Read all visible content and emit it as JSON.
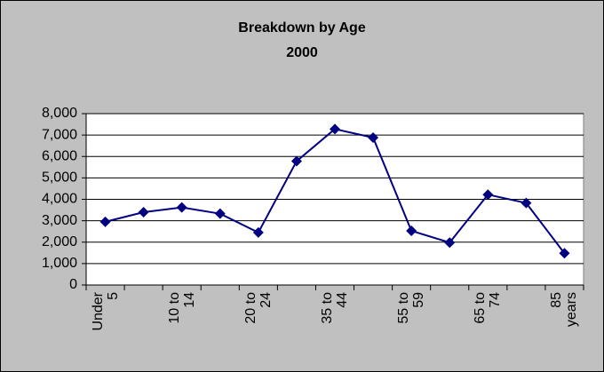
{
  "chart_data": {
    "type": "line",
    "title": "Breakdown by Age",
    "subtitle": "2000",
    "categories": [
      "Under 5",
      null,
      "10 to 14",
      null,
      "20 to 24",
      null,
      "35 to 44",
      null,
      "55 to 59",
      null,
      "65 to 74",
      null,
      "85 years"
    ],
    "series": [
      {
        "name": "2000",
        "color": "#000080",
        "values": [
          2950,
          3400,
          3620,
          3330,
          2450,
          5780,
          7280,
          6880,
          2530,
          1980,
          4220,
          3830,
          1480
        ]
      }
    ],
    "ylim": [
      0,
      8000
    ],
    "yticks": [
      0,
      {
        "value": 1000,
        "label": "1,000"
      },
      {
        "value": 2000,
        "label": "2,000"
      },
      {
        "value": 3000,
        "label": "3,000"
      },
      {
        "value": 4000,
        "label": "4,000"
      },
      {
        "value": 5000,
        "label": "5,000"
      },
      {
        "value": 6000,
        "label": "6,000"
      },
      {
        "value": 7000,
        "label": "7,000"
      },
      {
        "value": 8000,
        "label": "8,000"
      }
    ],
    "grid": true
  }
}
